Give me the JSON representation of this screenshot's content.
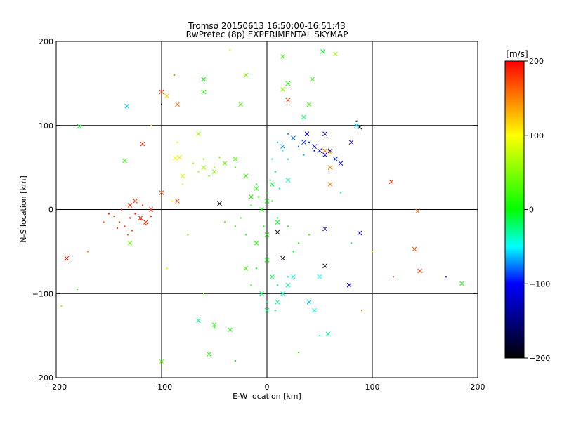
{
  "chart_data": {
    "type": "scatter",
    "title": "Tromsø 20150613 16:50:00-16:51:43",
    "subtitle": "RwPretec (8p) EXPERIMENTAL SKYMAP",
    "xlabel": "E-W location [km]",
    "ylabel": "N-S location [km]",
    "xlim": [
      -200,
      200
    ],
    "ylim": [
      -200,
      200
    ],
    "xticks": [
      -200,
      -100,
      0,
      100,
      200
    ],
    "yticks": [
      -200,
      -100,
      0,
      100,
      200
    ],
    "grid": true,
    "colorbar": {
      "label": "[m/s]",
      "range": [
        -200,
        200
      ],
      "ticks": [
        200,
        100,
        0,
        -100,
        -200
      ],
      "colormap": "rainbow-black-to-red",
      "colors": [
        "#000000",
        "#0000ff",
        "#00ffff",
        "#00ff00",
        "#ffff00",
        "#ff0000"
      ]
    },
    "series": [
      {
        "marker": "dot",
        "points": [
          [
            -130,
            -10,
            190
          ],
          [
            -140,
            -15,
            185
          ],
          [
            -125,
            -5,
            195
          ],
          [
            -135,
            -20,
            180
          ],
          [
            -120,
            -12,
            190
          ],
          [
            -145,
            -8,
            175
          ],
          [
            -115,
            -18,
            185
          ],
          [
            -150,
            -5,
            180
          ],
          [
            -128,
            -25,
            170
          ],
          [
            -138,
            0,
            190
          ],
          [
            -110,
            -8,
            180
          ],
          [
            -155,
            -15,
            175
          ],
          [
            -132,
            -30,
            165
          ],
          [
            -118,
            5,
            185
          ],
          [
            -142,
            -22,
            180
          ],
          [
            -60,
            60,
            60
          ],
          [
            -50,
            50,
            50
          ],
          [
            -40,
            55,
            40
          ],
          [
            -65,
            45,
            55
          ],
          [
            -55,
            40,
            35
          ],
          [
            -45,
            62,
            45
          ],
          [
            -70,
            55,
            70
          ],
          [
            -30,
            50,
            25
          ],
          [
            -20,
            40,
            15
          ],
          [
            -10,
            30,
            5
          ],
          [
            0,
            20,
            -5
          ],
          [
            5,
            10,
            0
          ],
          [
            -5,
            0,
            5
          ],
          [
            10,
            -10,
            -10
          ],
          [
            -8,
            15,
            10
          ],
          [
            3,
            35,
            -15
          ],
          [
            -15,
            5,
            10
          ],
          [
            8,
            45,
            -20
          ],
          [
            -3,
            -20,
            0
          ],
          [
            12,
            25,
            -30
          ],
          [
            10,
            80,
            -60
          ],
          [
            20,
            90,
            -70
          ],
          [
            30,
            75,
            -80
          ],
          [
            15,
            70,
            -50
          ],
          [
            25,
            85,
            -75
          ],
          [
            40,
            80,
            -90
          ],
          [
            35,
            65,
            -65
          ],
          [
            5,
            60,
            -40
          ],
          [
            20,
            60,
            -55
          ],
          [
            45,
            70,
            -100
          ],
          [
            -30,
            -20,
            30
          ],
          [
            -20,
            -30,
            20
          ],
          [
            -40,
            -15,
            35
          ],
          [
            -10,
            -40,
            10
          ],
          [
            -25,
            -10,
            25
          ],
          [
            0,
            -60,
            -15
          ],
          [
            5,
            -80,
            -20
          ],
          [
            -5,
            -100,
            -10
          ],
          [
            10,
            -90,
            -25
          ],
          [
            -10,
            -70,
            0
          ],
          [
            15,
            -100,
            -30
          ],
          [
            0,
            -110,
            -20
          ],
          [
            20,
            -80,
            -35
          ],
          [
            -15,
            -90,
            5
          ],
          [
            8,
            -120,
            -25
          ],
          [
            30,
            -40,
            10
          ],
          [
            20,
            -20,
            5
          ],
          [
            40,
            -30,
            15
          ],
          [
            25,
            -50,
            -5
          ],
          [
            -80,
            30,
            80
          ],
          [
            -90,
            10,
            100
          ],
          [
            -75,
            -30,
            40
          ],
          [
            -95,
            -70,
            110
          ],
          [
            -85,
            80,
            90
          ],
          [
            -110,
            100,
            120
          ],
          [
            -60,
            -100,
            30
          ],
          [
            -50,
            -140,
            10
          ],
          [
            -30,
            -180,
            -10
          ],
          [
            50,
            -150,
            -40
          ],
          [
            60,
            30,
            50
          ],
          [
            70,
            20,
            -20
          ],
          [
            80,
            -40,
            -60
          ],
          [
            100,
            -50,
            120
          ],
          [
            120,
            -80,
            170
          ],
          [
            -170,
            -50,
            150
          ],
          [
            -180,
            -95,
            30
          ],
          [
            -195,
            -115,
            50
          ],
          [
            85,
            105,
            -200
          ],
          [
            170,
            -80,
            -120
          ],
          [
            -100,
            125,
            -190
          ],
          [
            -88,
            160,
            150
          ],
          [
            -35,
            190,
            80
          ],
          [
            90,
            -120,
            160
          ],
          [
            30,
            -170,
            20
          ]
        ]
      },
      {
        "marker": "x",
        "points": [
          [
            -120,
            -10,
            190
          ],
          [
            -130,
            5,
            185
          ],
          [
            -115,
            -15,
            180
          ],
          [
            -125,
            10,
            175
          ],
          [
            -110,
            0,
            180
          ],
          [
            -100,
            20,
            175
          ],
          [
            -85,
            10,
            170
          ],
          [
            -190,
            -58,
            190
          ],
          [
            -100,
            140,
            180
          ],
          [
            -118,
            78,
            185
          ],
          [
            -95,
            135,
            120
          ],
          [
            -85,
            125,
            160
          ],
          [
            -133,
            123,
            -60
          ],
          [
            -178,
            99,
            -10
          ],
          [
            -135,
            58,
            20
          ],
          [
            -65,
            90,
            60
          ],
          [
            -87,
            61,
            90
          ],
          [
            -83,
            62,
            110
          ],
          [
            -80,
            40,
            80
          ],
          [
            -40,
            55,
            40
          ],
          [
            -50,
            45,
            50
          ],
          [
            -30,
            60,
            30
          ],
          [
            -60,
            50,
            60
          ],
          [
            -20,
            40,
            20
          ],
          [
            -10,
            25,
            10
          ],
          [
            0,
            10,
            0
          ],
          [
            5,
            30,
            -10
          ],
          [
            -5,
            0,
            5
          ],
          [
            10,
            -15,
            -5
          ],
          [
            0,
            -30,
            0
          ],
          [
            -15,
            15,
            15
          ],
          [
            20,
            35,
            -40
          ],
          [
            15,
            75,
            -70
          ],
          [
            25,
            85,
            -80
          ],
          [
            35,
            80,
            -90
          ],
          [
            45,
            75,
            -110
          ],
          [
            50,
            70,
            -130
          ],
          [
            55,
            65,
            -100
          ],
          [
            60,
            70,
            -120
          ],
          [
            65,
            60,
            -90
          ],
          [
            70,
            55,
            -100
          ],
          [
            80,
            80,
            -110
          ],
          [
            38,
            90,
            -100
          ],
          [
            55,
            90,
            -120
          ],
          [
            85,
            100,
            -60
          ],
          [
            60,
            50,
            150
          ],
          [
            55,
            70,
            160
          ],
          [
            60,
            68,
            140
          ],
          [
            60,
            30,
            150
          ],
          [
            20,
            130,
            180
          ],
          [
            88,
            98,
            -200
          ],
          [
            118,
            33,
            180
          ],
          [
            143,
            -2,
            160
          ],
          [
            140,
            -47,
            170
          ],
          [
            145,
            -73,
            180
          ],
          [
            -45,
            7,
            -200
          ],
          [
            55,
            -67,
            -200
          ],
          [
            15,
            -58,
            -200
          ],
          [
            10,
            -27,
            -200
          ],
          [
            -10,
            -40,
            10
          ],
          [
            0,
            -60,
            0
          ],
          [
            5,
            -80,
            -15
          ],
          [
            -5,
            -100,
            -20
          ],
          [
            10,
            -110,
            -25
          ],
          [
            15,
            -100,
            -35
          ],
          [
            20,
            -90,
            -30
          ],
          [
            25,
            -80,
            -40
          ],
          [
            -20,
            -70,
            20
          ],
          [
            0,
            -120,
            -20
          ],
          [
            50,
            -80,
            -50
          ],
          [
            78,
            -90,
            -120
          ],
          [
            55,
            -23,
            -130
          ],
          [
            88,
            -28,
            -120
          ],
          [
            -100,
            -181,
            40
          ],
          [
            -50,
            -137,
            10
          ],
          [
            -55,
            -172,
            10
          ],
          [
            -65,
            -132,
            -30
          ],
          [
            -35,
            -143,
            10
          ],
          [
            45,
            -120,
            -40
          ],
          [
            58,
            -148,
            -30
          ],
          [
            40,
            -110,
            -60
          ],
          [
            -130,
            -40,
            40
          ],
          [
            -60,
            140,
            10
          ],
          [
            -60,
            155,
            0
          ],
          [
            -25,
            125,
            30
          ],
          [
            -20,
            160,
            50
          ],
          [
            15,
            182,
            20
          ],
          [
            20,
            150,
            10
          ],
          [
            15,
            143,
            50
          ],
          [
            40,
            125,
            20
          ],
          [
            43,
            155,
            20
          ],
          [
            65,
            185,
            60
          ],
          [
            53,
            188,
            -10
          ],
          [
            35,
            110,
            -20
          ],
          [
            185,
            -88,
            10
          ]
        ]
      }
    ]
  }
}
